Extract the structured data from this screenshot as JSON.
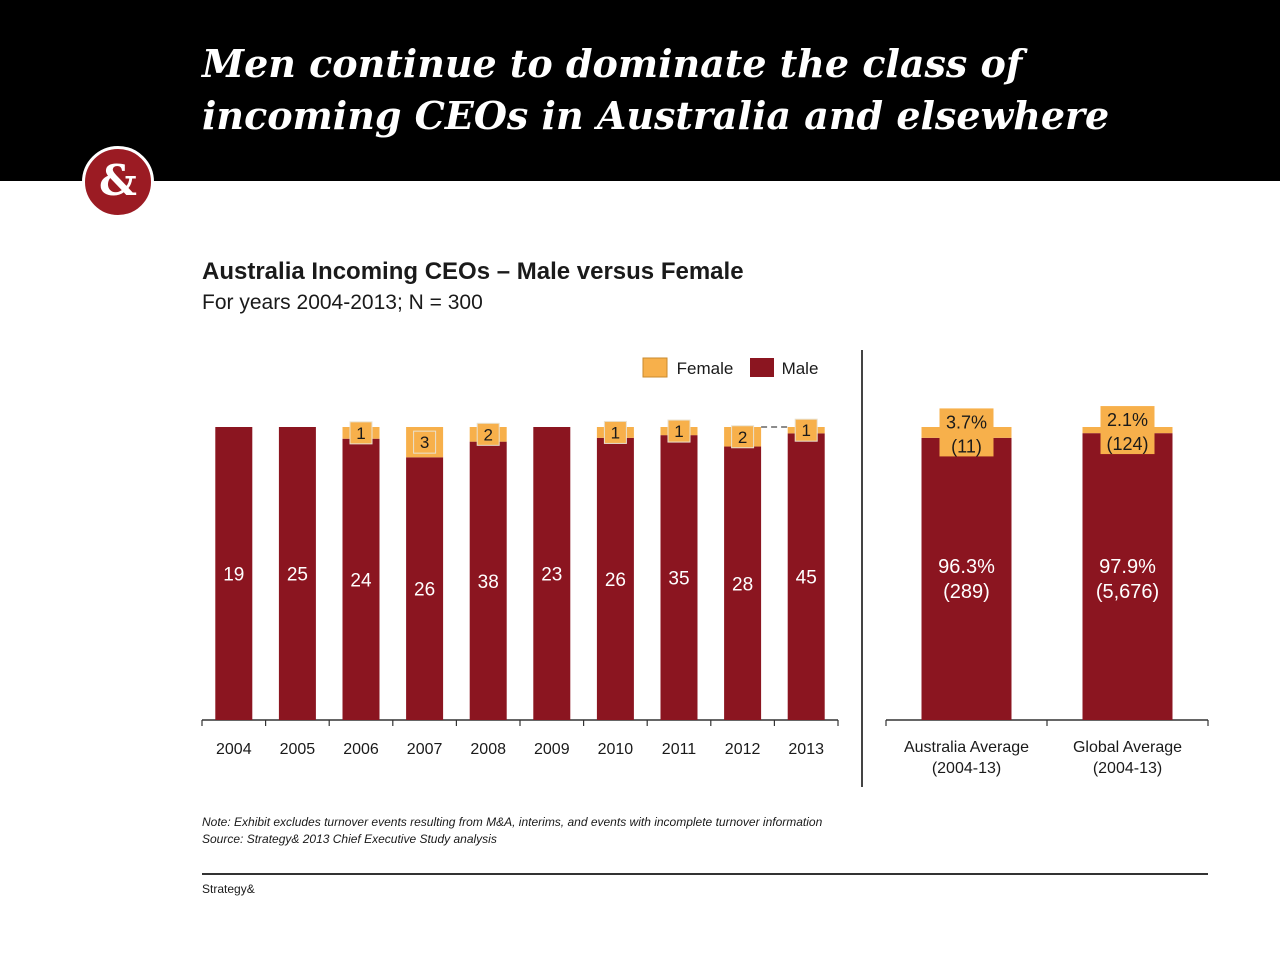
{
  "slide": {
    "title": "Men continue to dominate the class of\nincoming CEOs in Australia and elsewhere",
    "logo_text": "&",
    "footer": "Strategy&",
    "note": "Note: Exhibit excludes turnover events resulting from M&A, interims, and events with incomplete turnover information",
    "source": "Source: Strategy& 2013 Chief Executive Study analysis"
  },
  "colors": {
    "male": "#8b1520",
    "female": "#f7b04b",
    "header_bg": "#000000",
    "logo": "#9b1b23"
  },
  "chart_data": [
    {
      "type": "bar",
      "stacked": true,
      "title": "Australia Incoming CEOs – Male versus Female",
      "subtitle": "For years 2004-2013; N = 300",
      "categories": [
        "2004",
        "2005",
        "2006",
        "2007",
        "2008",
        "2009",
        "2010",
        "2011",
        "2012",
        "2013"
      ],
      "series": [
        {
          "name": "Male",
          "values": [
            19,
            25,
            24,
            26,
            38,
            23,
            26,
            35,
            28,
            45
          ],
          "labels": [
            "19",
            "25",
            "24",
            "26",
            "38",
            "23",
            "26",
            "35",
            "28",
            "45"
          ]
        },
        {
          "name": "Female",
          "values": [
            0,
            0,
            1,
            3,
            2,
            0,
            1,
            1,
            2,
            1
          ],
          "labels": [
            "",
            "",
            "1",
            "3",
            "2",
            "",
            "1",
            "1",
            "2",
            "1"
          ]
        }
      ],
      "normalized": true,
      "legend": {
        "position": "top-right",
        "entries": [
          "Female",
          "Male"
        ]
      }
    },
    {
      "type": "bar",
      "stacked": true,
      "categories": [
        "Australia Average\n(2004-13)",
        "Global Average\n(2004-13)"
      ],
      "series": [
        {
          "name": "Male",
          "values": [
            96.3,
            97.9
          ],
          "labels": [
            "96.3%\n(289)",
            "97.9%\n(5,676)"
          ]
        },
        {
          "name": "Female",
          "values": [
            3.7,
            2.1
          ],
          "labels": [
            "3.7%\n(11)",
            "2.1%\n(124)"
          ]
        }
      ],
      "normalized": true
    }
  ]
}
